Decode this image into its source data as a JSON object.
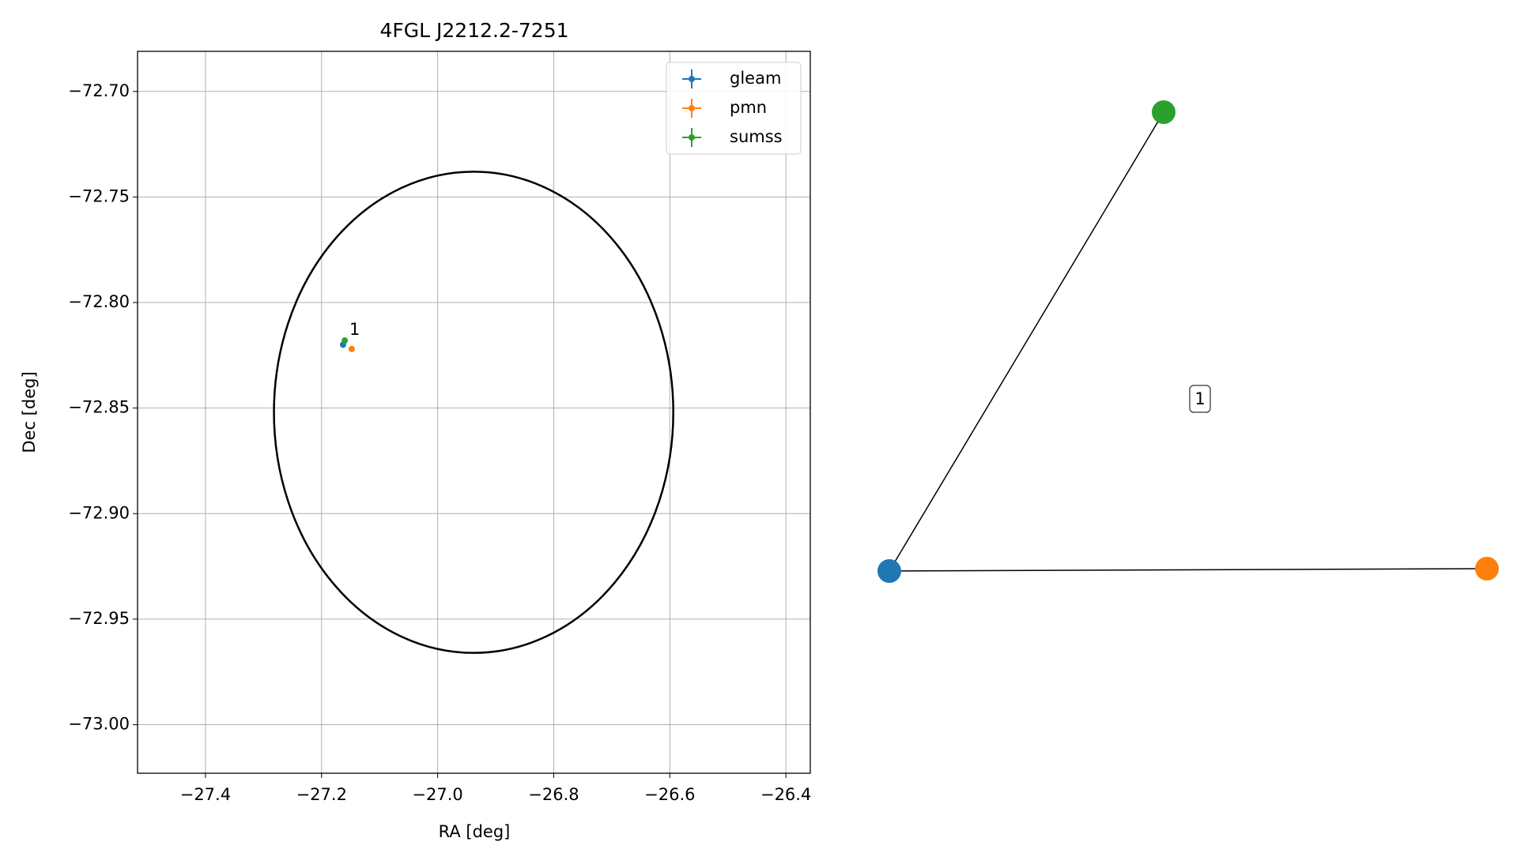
{
  "chart_data": [
    {
      "type": "scatter",
      "title": "4FGL J2212.2-7251",
      "x_label": "RA [deg]",
      "y_label": "Dec [deg]",
      "xlim": [
        -27.517,
        -26.358
      ],
      "ylim": [
        -73.023,
        -72.681
      ],
      "xticks": [
        {
          "value": -27.4,
          "label": "−27.4"
        },
        {
          "value": -27.2,
          "label": "−27.2"
        },
        {
          "value": -27.0,
          "label": "−27.0"
        },
        {
          "value": -26.8,
          "label": "−26.8"
        },
        {
          "value": -26.6,
          "label": "−26.6"
        },
        {
          "value": -26.4,
          "label": "−26.4"
        }
      ],
      "yticks": [
        {
          "value": -72.7,
          "label": "−72.70"
        },
        {
          "value": -72.75,
          "label": "−72.75"
        },
        {
          "value": -72.8,
          "label": "−72.80"
        },
        {
          "value": -72.85,
          "label": "−72.85"
        },
        {
          "value": -72.9,
          "label": "−72.90"
        },
        {
          "value": -72.95,
          "label": "−72.95"
        },
        {
          "value": -73.0,
          "label": "−73.00"
        }
      ],
      "grid": true,
      "legend": "upper right",
      "series": [
        {
          "name": "gleam",
          "color": "#1f77b4",
          "x": [
            -27.163
          ],
          "values": [
            -72.82
          ]
        },
        {
          "name": "pmn",
          "color": "#ff7f0e",
          "x": [
            -27.148
          ],
          "values": [
            -72.822
          ]
        },
        {
          "name": "sumss",
          "color": "#2ca02c",
          "x": [
            -27.16
          ],
          "values": [
            -72.818
          ]
        }
      ],
      "ellipse": {
        "center": [
          -26.938,
          -72.852
        ],
        "semi_axes": [
          0.344,
          0.114
        ]
      },
      "annotation": {
        "text": "1",
        "x": -27.152,
        "y": -72.813
      }
    },
    {
      "type": "network",
      "nodes": [
        {
          "color": "#1f77b4"
        },
        {
          "color": "#2ca02c"
        },
        {
          "color": "#ff7f0e"
        }
      ],
      "edges": [
        [
          0,
          1
        ],
        [
          0,
          2
        ]
      ],
      "label": "1"
    }
  ]
}
